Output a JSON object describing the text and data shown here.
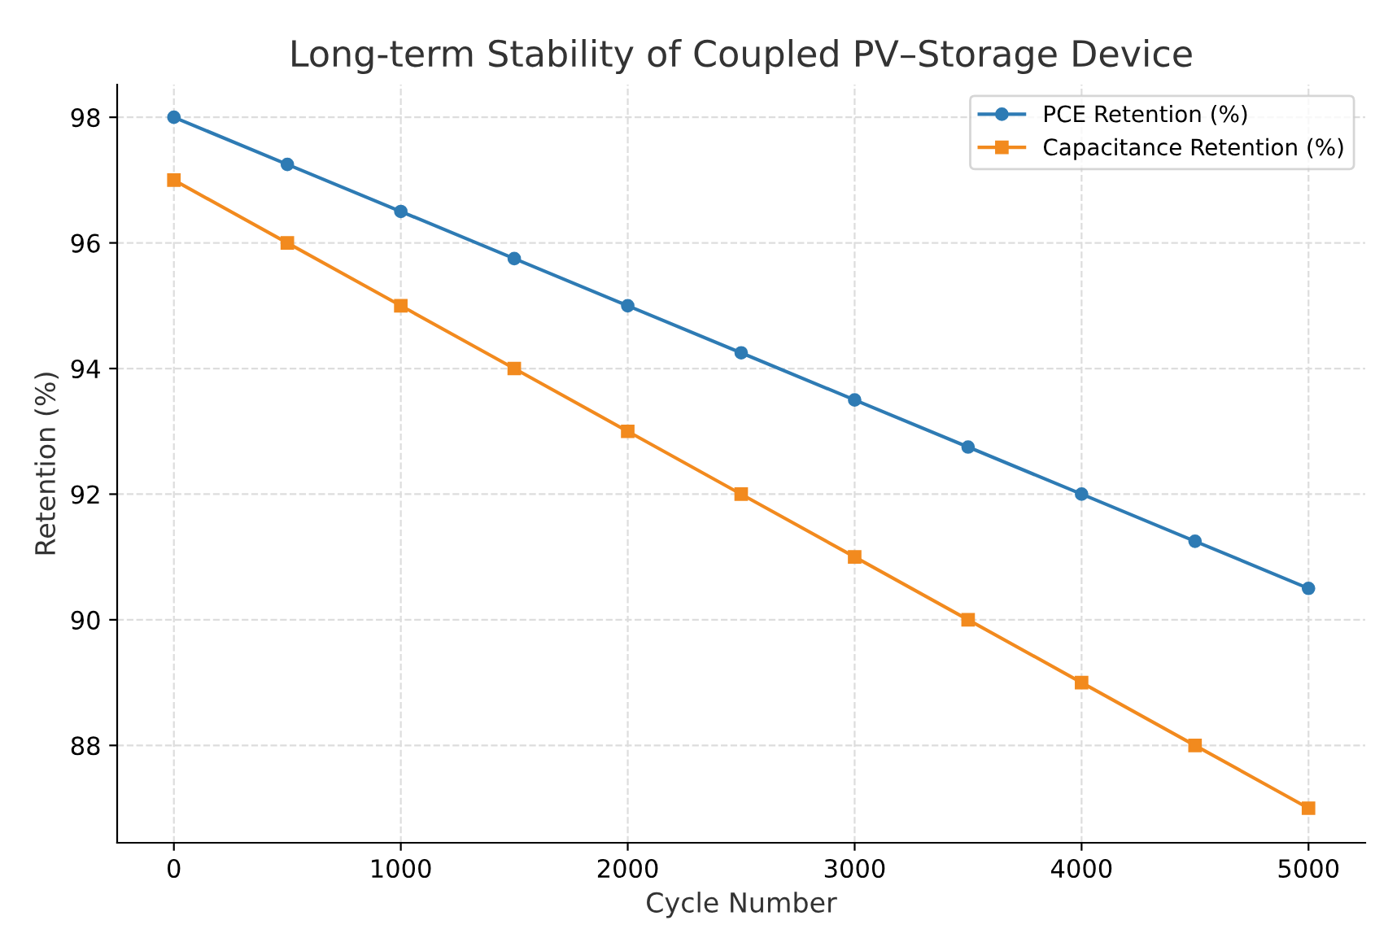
{
  "chart_data": {
    "type": "line",
    "title": "Long-term Stability of Coupled PV–Storage Device",
    "xlabel": "Cycle Number",
    "ylabel": "Retention (%)",
    "x": [
      0,
      500,
      1000,
      1500,
      2000,
      2500,
      3000,
      3500,
      4000,
      4500,
      5000
    ],
    "series": [
      {
        "name": "PCE Retention (%)",
        "color": "#2e7bb4",
        "marker": "circle",
        "values": [
          98,
          97.25,
          96.5,
          95.75,
          95,
          94.25,
          93.5,
          92.75,
          92,
          91.25,
          90.5
        ]
      },
      {
        "name": "Capacitance Retention (%)",
        "color": "#f28a1e",
        "marker": "square",
        "values": [
          97,
          96,
          95,
          94,
          93,
          92,
          91,
          90,
          89,
          88,
          87
        ]
      }
    ],
    "xlim": [
      -250,
      5250
    ],
    "xticks": [
      0,
      1000,
      2000,
      3000,
      4000,
      5000
    ],
    "ylim": [
      86.45,
      98.52
    ],
    "yticks": [
      88,
      90,
      92,
      94,
      96,
      98
    ],
    "grid": true,
    "legend": "top right",
    "line_style": "solid"
  }
}
